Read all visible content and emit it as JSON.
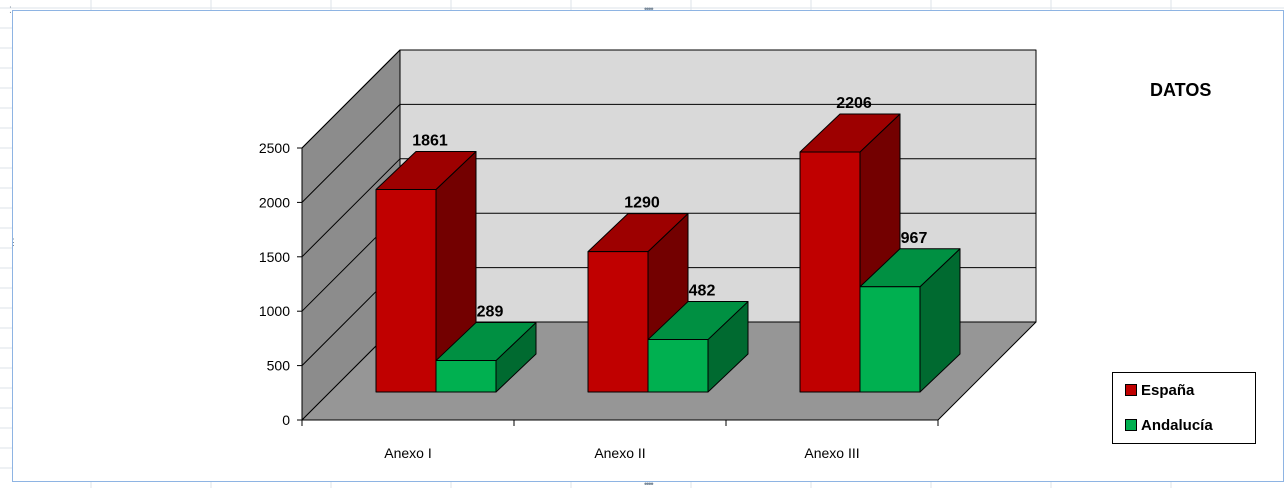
{
  "chart_data": {
    "type": "bar",
    "title": "DATOS",
    "categories": [
      "Anexo I",
      "Anexo II",
      "Anexo III"
    ],
    "series": [
      {
        "name": "España",
        "values": [
          1861,
          1290,
          2206
        ],
        "color": "#c00000"
      },
      {
        "name": "Andalucía",
        "values": [
          289,
          482,
          967
        ],
        "color": "#00b050"
      }
    ],
    "yticks": [
      "0",
      "500",
      "1000",
      "1500",
      "2000",
      "2500"
    ],
    "ylim": [
      0,
      2500
    ],
    "grid": true,
    "legend_position": "right",
    "projection": "3d"
  }
}
